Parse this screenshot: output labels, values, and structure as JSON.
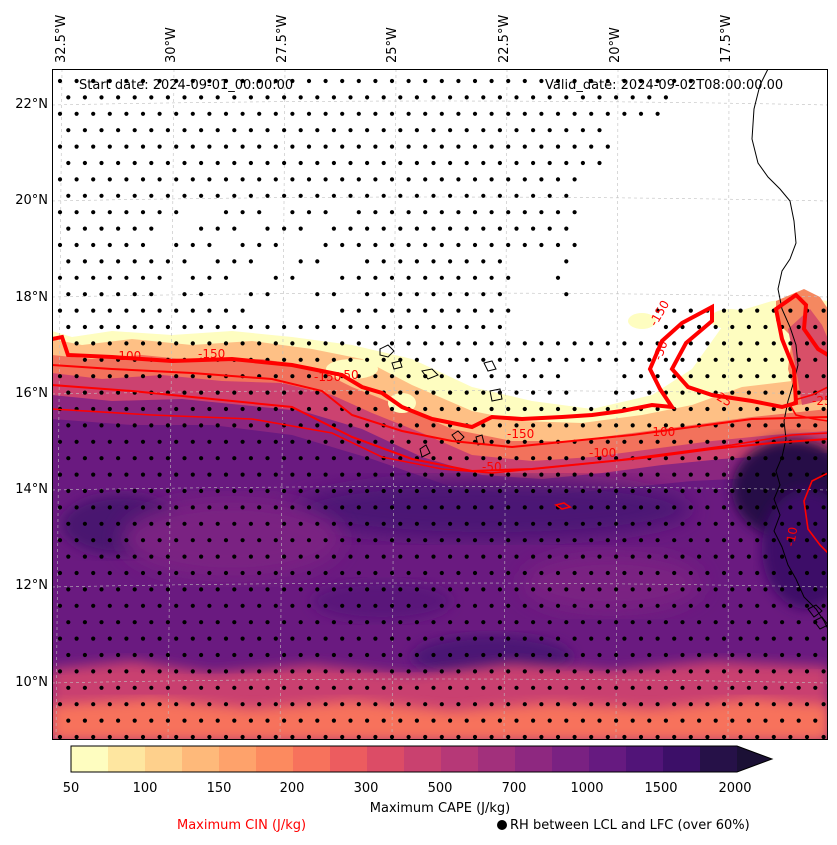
{
  "map": {
    "start_date": "Start date: 2024-09-01_00:00:00",
    "valid_date": "Valid_date: 2024-09-02T08:00:00.00",
    "lon_labels": [
      "32.5°W",
      "30°W",
      "27.5°W",
      "25°W",
      "22.5°W",
      "20°W",
      "17.5°W"
    ],
    "lat_labels": [
      "22°N",
      "20°N",
      "18°N",
      "16°N",
      "14°N",
      "12°N",
      "10°N"
    ],
    "contour_labels": [
      "-100",
      "-150",
      "-150",
      "-50",
      "-150",
      "-50",
      "-100",
      "-150",
      "-25",
      "-50",
      "-100",
      "-25",
      "-10"
    ],
    "legend": {
      "cin_label": "Maximum CIN (J/kg)",
      "cin_color": "#ff0000",
      "rh_label": "RH between LCL and LFC (over 60%)"
    }
  },
  "colorbar": {
    "title": "Maximum CAPE (J/kg)",
    "ticks": [
      "50",
      "100",
      "150",
      "200",
      "300",
      "500",
      "700",
      "1000",
      "1500",
      "2000"
    ],
    "colors": [
      "#fefdc0",
      "#fee6a0",
      "#fed08c",
      "#feb97a",
      "#fea26b",
      "#fc8a5f",
      "#f7725c",
      "#ec5c5f",
      "#dc4c66",
      "#c9416f",
      "#b63877",
      "#a2307c",
      "#8e2880",
      "#7a2182",
      "#661a80",
      "#511478",
      "#3c0f68",
      "#261148",
      "#1b1035"
    ]
  }
}
